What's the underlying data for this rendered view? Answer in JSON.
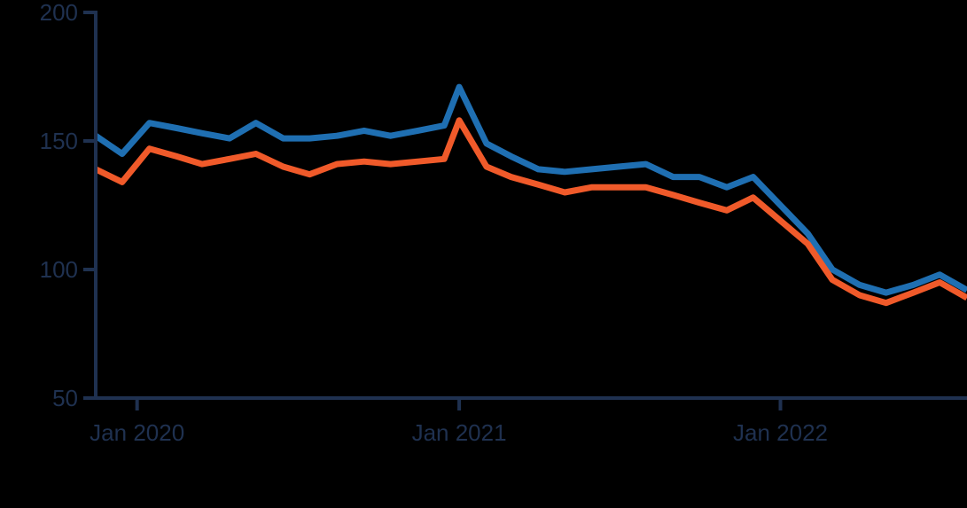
{
  "chart_data": {
    "type": "line",
    "title": "",
    "xlabel": "",
    "ylabel": "",
    "ylim": [
      50,
      200
    ],
    "yticks": [
      {
        "value": 50,
        "label": "50"
      },
      {
        "value": 100,
        "label": "100"
      },
      {
        "value": 150,
        "label": "150"
      },
      {
        "value": 200,
        "label": "200"
      }
    ],
    "xlim": [
      "2019-11-15",
      "2022-08-01"
    ],
    "xticks": [
      {
        "value": "2020-01-01",
        "label": "Jan 2020"
      },
      {
        "value": "2021-01-01",
        "label": "Jan 2021"
      },
      {
        "value": "2022-01-01",
        "label": "Jan 2022"
      }
    ],
    "grid": false,
    "x": [
      "2019-11-15",
      "2019-12-15",
      "2020-01-15",
      "2020-02-15",
      "2020-03-15",
      "2020-04-15",
      "2020-05-15",
      "2020-06-15",
      "2020-07-15",
      "2020-08-15",
      "2020-09-15",
      "2020-10-15",
      "2020-11-15",
      "2020-12-15",
      "2021-01-01",
      "2021-02-01",
      "2021-03-01",
      "2021-04-01",
      "2021-05-01",
      "2021-06-01",
      "2021-07-01",
      "2021-08-01",
      "2021-09-01",
      "2021-10-01",
      "2021-11-01",
      "2021-12-01",
      "2022-01-01",
      "2022-02-01",
      "2022-03-01",
      "2022-04-01",
      "2022-05-01",
      "2022-06-01",
      "2022-07-01",
      "2022-08-01"
    ],
    "series": [
      {
        "color": "#1f6fb2",
        "values": [
          152,
          145,
          157,
          155,
          153,
          151,
          157,
          151,
          151,
          152,
          154,
          152,
          154,
          156,
          171,
          149,
          144,
          139,
          138,
          139,
          140,
          141,
          136,
          136,
          132,
          136,
          125,
          114,
          100,
          94,
          91,
          94,
          98,
          92
        ]
      },
      {
        "color": "#f05a2a",
        "values": [
          139,
          134,
          147,
          144,
          141,
          143,
          145,
          140,
          137,
          141,
          142,
          141,
          142,
          143,
          158,
          140,
          136,
          133,
          130,
          132,
          132,
          132,
          129,
          126,
          123,
          128,
          119,
          110,
          96,
          90,
          87,
          91,
          95,
          89
        ]
      }
    ]
  }
}
